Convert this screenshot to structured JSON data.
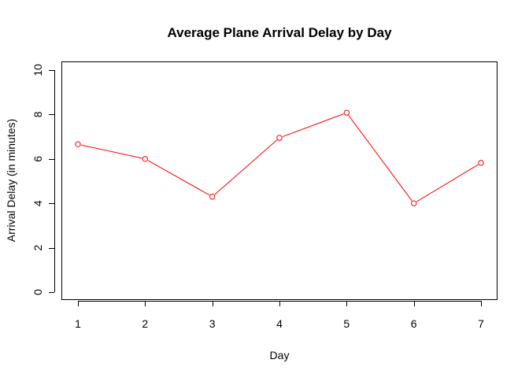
{
  "chart_data": {
    "type": "line",
    "title": "Average Plane Arrival Delay by Day",
    "xlabel": "Day",
    "ylabel": "Arrival Delay (in minutes)",
    "x": [
      1,
      2,
      3,
      4,
      5,
      6,
      7
    ],
    "series": [
      {
        "values": [
          6.66,
          6.0,
          4.3,
          6.95,
          8.08,
          4.0,
          5.82
        ],
        "color": "#ff0000"
      }
    ],
    "x_ticks": [
      1,
      2,
      3,
      4,
      5,
      6,
      7
    ],
    "y_ticks": [
      0,
      2,
      4,
      6,
      8,
      10
    ],
    "xlim": [
      1,
      7
    ],
    "ylim": [
      0,
      10
    ],
    "grid": false,
    "markers": "open-circle"
  }
}
